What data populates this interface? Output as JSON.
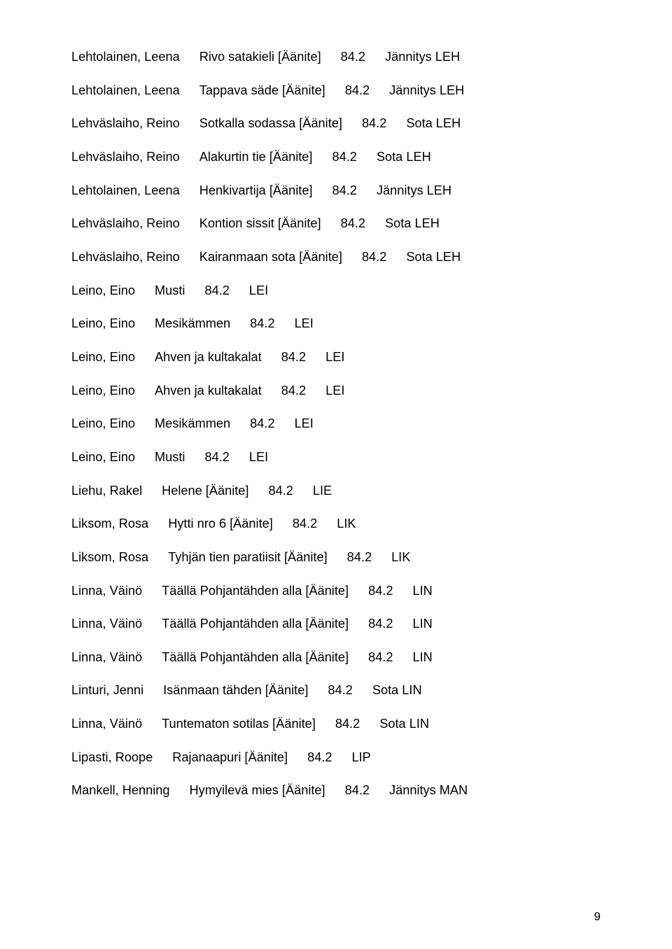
{
  "text_color": "#000000",
  "background_color": "#ffffff",
  "font_size_pt": 13,
  "page_number": "9",
  "rows": [
    {
      "author": "Lehtolainen, Leena",
      "title": "Rivo satakieli [Äänite]",
      "code": "84.2",
      "classmark": "Jännitys LEH"
    },
    {
      "author": "Lehtolainen, Leena",
      "title": "Tappava säde [Äänite]",
      "code": "84.2",
      "classmark": "Jännitys LEH"
    },
    {
      "author": "Lehväslaiho, Reino",
      "title": "Sotkalla sodassa [Äänite]",
      "code": "84.2",
      "classmark": "Sota LEH"
    },
    {
      "author": "Lehväslaiho, Reino",
      "title": "Alakurtin tie [Äänite]",
      "code": "84.2",
      "classmark": "Sota LEH"
    },
    {
      "author": "Lehtolainen, Leena",
      "title": "Henkivartija [Äänite]",
      "code": "84.2",
      "classmark": "Jännitys LEH"
    },
    {
      "author": "Lehväslaiho, Reino",
      "title": "Kontion sissit [Äänite]",
      "code": "84.2",
      "classmark": "Sota LEH"
    },
    {
      "author": "Lehväslaiho, Reino",
      "title": "Kairanmaan sota [Äänite]",
      "code": "84.2",
      "classmark": "Sota LEH"
    },
    {
      "author": "Leino, Eino",
      "title": "Musti",
      "code": "84.2",
      "classmark": "LEI"
    },
    {
      "author": "Leino, Eino",
      "title": "Mesikämmen",
      "code": "84.2",
      "classmark": "LEI"
    },
    {
      "author": "Leino, Eino",
      "title": "Ahven ja kultakalat",
      "code": "84.2",
      "classmark": "LEI"
    },
    {
      "author": "Leino, Eino",
      "title": "Ahven ja kultakalat",
      "code": "84.2",
      "classmark": "LEI"
    },
    {
      "author": "Leino, Eino",
      "title": "Mesikämmen",
      "code": "84.2",
      "classmark": "LEI"
    },
    {
      "author": "Leino, Eino",
      "title": "Musti",
      "code": "84.2",
      "classmark": "LEI"
    },
    {
      "author": "Liehu, Rakel",
      "title": "Helene [Äänite]",
      "code": "84.2",
      "classmark": "LIE"
    },
    {
      "author": "Liksom, Rosa",
      "title": "Hytti nro 6 [Äänite]",
      "code": "84.2",
      "classmark": "LIK"
    },
    {
      "author": "Liksom, Rosa",
      "title": "Tyhjän tien paratiisit [Äänite]",
      "code": "84.2",
      "classmark": "LIK"
    },
    {
      "author": "Linna, Väinö",
      "title": "Täällä Pohjantähden alla [Äänite]",
      "code": "84.2",
      "classmark": "LIN"
    },
    {
      "author": "Linna, Väinö",
      "title": "Täällä Pohjantähden alla [Äänite]",
      "code": "84.2",
      "classmark": "LIN"
    },
    {
      "author": "Linna, Väinö",
      "title": "Täällä Pohjantähden alla [Äänite]",
      "code": "84.2",
      "classmark": "LIN"
    },
    {
      "author": "Linturi, Jenni",
      "title": "Isänmaan tähden [Äänite]",
      "code": "84.2",
      "classmark": "Sota LIN"
    },
    {
      "author": "Linna, Väinö",
      "title": "Tuntematon sotilas [Äänite]",
      "code": "84.2",
      "classmark": "Sota LIN"
    },
    {
      "author": "Lipasti, Roope",
      "title": "Rajanaapuri [Äänite]",
      "code": "84.2",
      "classmark": "LIP"
    },
    {
      "author": "Mankell, Henning",
      "title": "Hymyilevä mies [Äänite]",
      "code": "84.2",
      "classmark": "Jännitys MAN"
    }
  ]
}
